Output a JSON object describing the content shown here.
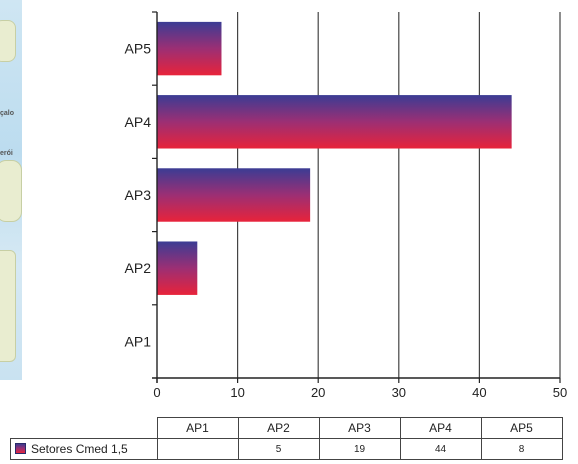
{
  "map_labels": [
    "çalo",
    "erói"
  ],
  "chart_data": {
    "type": "bar",
    "orientation": "horizontal",
    "categories": [
      "AP1",
      "AP2",
      "AP3",
      "AP4",
      "AP5"
    ],
    "series": [
      {
        "name": "Setores Cmed 1,5",
        "values": [
          null,
          5,
          19,
          44,
          8
        ]
      }
    ],
    "xlim": [
      0,
      50
    ],
    "xticks": [
      0,
      10,
      20,
      30,
      40,
      50
    ],
    "grid": "vertical",
    "title": "",
    "xlabel": "",
    "ylabel": "",
    "colors": {
      "bar_top": "#3b3c94",
      "bar_bottom": "#e8233a"
    }
  },
  "table": {
    "headers": [
      "AP1",
      "AP2",
      "AP3",
      "AP4",
      "AP5"
    ],
    "row_label": "Setores Cmed 1,5",
    "cells": [
      "",
      "5",
      "19",
      "44",
      "8"
    ]
  }
}
